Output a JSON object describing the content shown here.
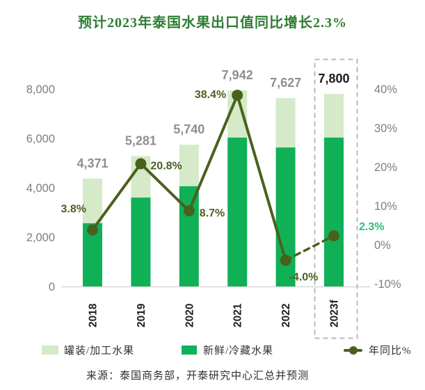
{
  "title": {
    "text": "预计2023年泰国水果出口值同比增长2.3%",
    "color": "#2e7d32"
  },
  "chart_data": {
    "type": "bar",
    "subtype": "stacked-bars-with-yoy-line",
    "title": "预计2023年泰国水果出口值同比增长2.3%",
    "categories": [
      "2018",
      "2019",
      "2020",
      "2021",
      "2022",
      "2023f"
    ],
    "series": [
      {
        "name": "新鲜/冷藏水果",
        "role": "bar-bottom-segment",
        "color": "#10b057",
        "values": [
          2560,
          3600,
          4060,
          6030,
          5630,
          6030
        ],
        "values_estimated": true
      },
      {
        "name": "罐装/加工水果",
        "role": "bar-top-segment",
        "color": "#d5eac8",
        "values": [
          1811,
          1681,
          1680,
          1912,
          1997,
          1770
        ],
        "values_estimated": true
      }
    ],
    "totals": {
      "values": [
        4371,
        5281,
        5740,
        7942,
        7627,
        7800
      ],
      "labels": [
        "4,371",
        "5,281",
        "5,740",
        "7,942",
        "7,627",
        "7,800"
      ],
      "label_colors": [
        "#8f8f8f",
        "#8f8f8f",
        "#8f8f8f",
        "#8f8f8f",
        "#8f8f8f",
        "#1a1a1a"
      ]
    },
    "line": {
      "name": "年同比%",
      "color": "#4a611e",
      "values": [
        3.8,
        20.8,
        8.7,
        38.4,
        -4.0,
        2.3
      ],
      "labels": [
        "3.8%",
        "20.8%",
        "8.7%",
        "38.4%",
        "-4.0%",
        "2.3%"
      ],
      "label_colors": [
        "#4a611e",
        "#4a611e",
        "#4a611e",
        "#4a611e",
        "#4a611e",
        "#2fbe7d"
      ],
      "forecast_segment_dashed": true
    },
    "left_axis": {
      "range": [
        0,
        8000
      ],
      "tick_values": [
        8000,
        6000,
        4000,
        2000,
        0
      ],
      "tick_labels": [
        "8,000",
        "6,000",
        "4,000",
        "2,000",
        "0"
      ]
    },
    "right_axis": {
      "range": [
        -10,
        40
      ],
      "tick_values": [
        40,
        30,
        20,
        10,
        0,
        -10
      ],
      "tick_labels": [
        "40%",
        "30%",
        "20%",
        "10%",
        "0%",
        "-10%"
      ]
    },
    "grid": false,
    "legend_position": "bottom",
    "highlight": {
      "category": "2023f",
      "style": "dashed-box"
    }
  },
  "legend": {
    "items": [
      {
        "label": "罐装/加工水果",
        "swatch": "#d5eac8",
        "marker": "square"
      },
      {
        "label": "新鲜/冷藏水果",
        "swatch": "#10b057",
        "marker": "square"
      },
      {
        "label": "年同比%",
        "swatch": "#4a611e",
        "marker": "line-dot"
      }
    ]
  },
  "source": {
    "text": "来源：泰国商务部，开泰研究中心汇总并预测"
  }
}
